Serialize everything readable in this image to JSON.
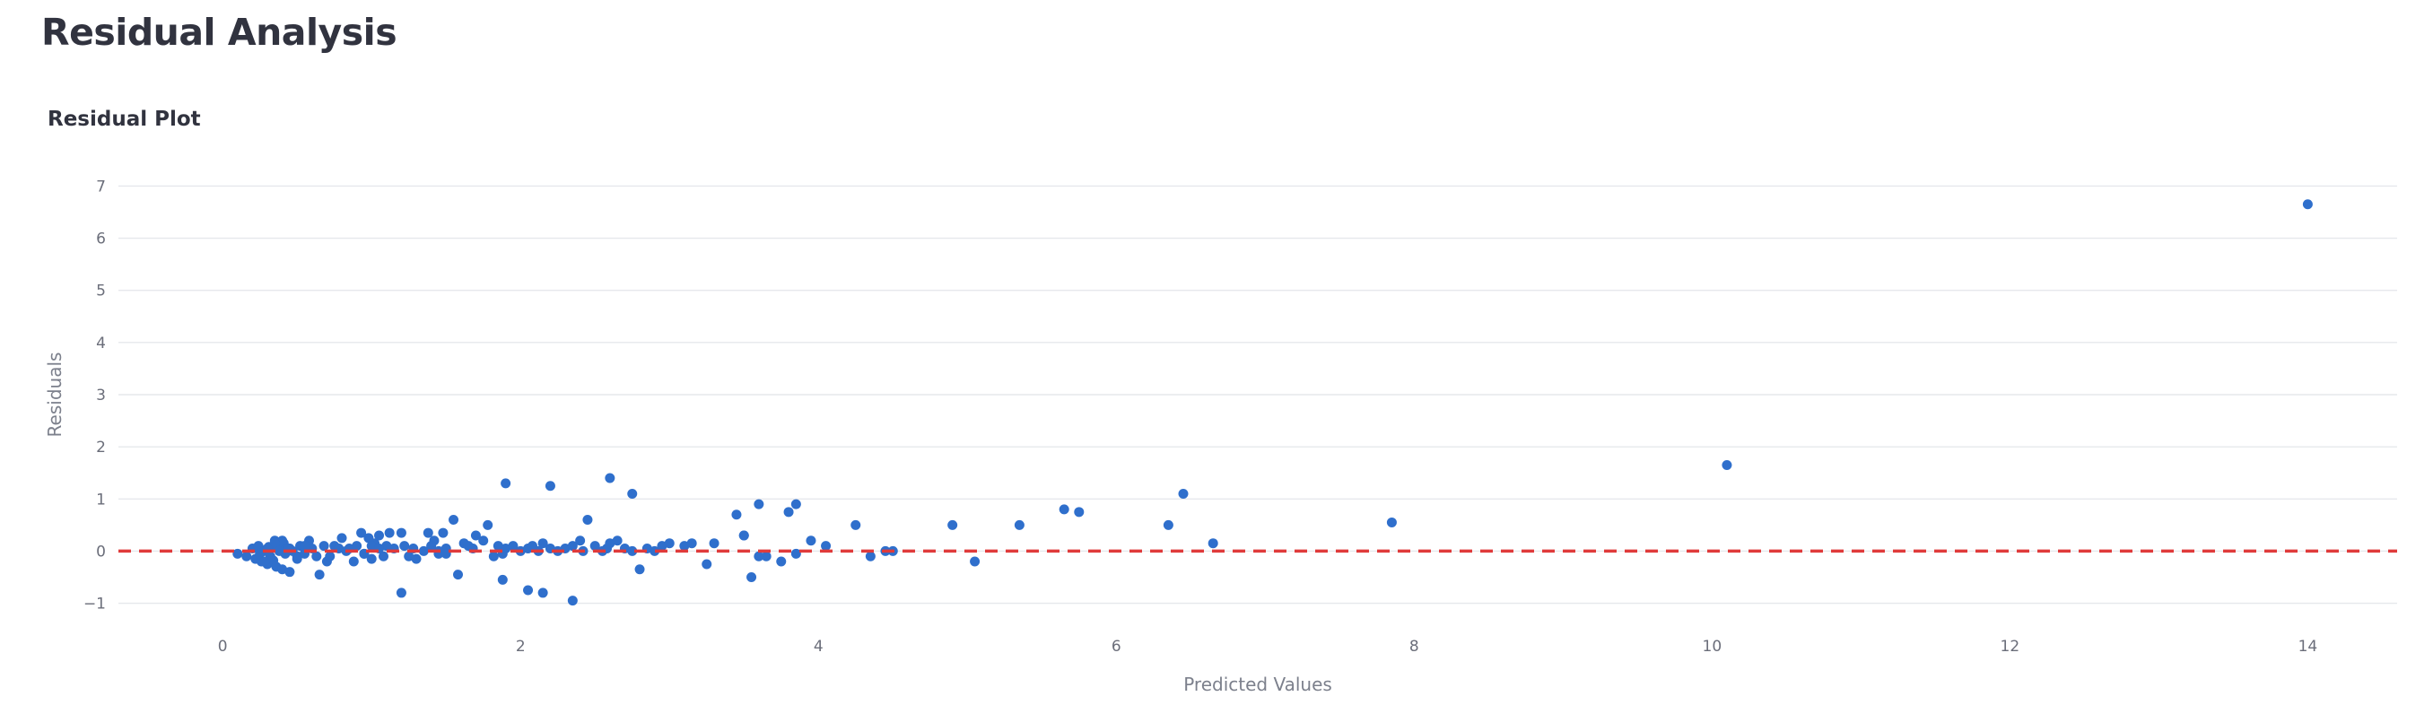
{
  "page": {
    "title": "Residual Analysis"
  },
  "chart_data": {
    "type": "scatter",
    "title": "Residual Plot",
    "xlabel": "Predicted Values",
    "ylabel": "Residuals",
    "xlim": [
      -0.7,
      14.6
    ],
    "ylim": [
      -1.3,
      7.3
    ],
    "x_ticks": [
      0,
      2,
      4,
      6,
      8,
      10,
      12,
      14
    ],
    "y_ticks": [
      -1,
      0,
      1,
      2,
      3,
      4,
      5,
      6,
      7
    ],
    "grid": true,
    "legend": "none",
    "colors": {
      "points": "#2f6fcc",
      "reference_line": "#e03b3b",
      "grid": "#e6e8ec"
    },
    "reference_line": {
      "y": 0,
      "style": "dashed"
    },
    "series": [
      {
        "x": [
          0.1,
          0.16,
          0.2,
          0.22,
          0.24,
          0.26,
          0.28,
          0.3,
          0.31,
          0.32,
          0.34,
          0.35,
          0.36,
          0.38,
          0.4,
          0.41,
          0.42,
          0.44,
          0.45,
          0.47,
          0.5,
          0.52,
          0.55,
          0.58,
          0.6,
          0.63,
          0.65,
          0.68,
          0.7,
          0.72,
          0.75,
          0.78,
          0.8,
          0.83,
          0.85,
          0.88,
          0.9,
          0.93,
          0.95,
          0.98,
          1.0,
          1.02,
          1.05,
          1.08,
          1.1,
          1.12,
          1.15,
          1.2,
          1.22,
          1.25,
          1.28,
          1.3,
          1.35,
          1.38,
          1.42,
          1.45,
          1.48,
          1.5,
          1.55,
          1.58,
          1.62,
          1.65,
          1.68,
          1.7,
          1.75,
          1.78,
          1.82,
          1.85,
          1.88,
          1.9,
          1.95,
          2.0,
          2.05,
          2.08,
          2.12,
          2.15,
          2.2,
          2.25,
          2.3,
          2.35,
          2.4,
          2.45,
          2.5,
          2.55,
          2.6,
          2.65,
          2.7,
          2.75,
          2.8,
          2.85,
          2.9,
          2.95,
          3.0,
          3.1,
          3.15,
          3.25,
          3.3,
          3.45,
          3.5,
          3.55,
          3.6,
          3.65,
          3.75,
          3.8,
          3.85,
          3.95,
          4.05,
          4.25,
          4.35,
          4.45,
          4.5,
          4.9,
          5.05,
          5.35,
          5.65,
          5.75,
          6.35,
          6.45,
          6.65,
          7.85,
          10.1,
          14.0,
          1.2,
          2.35,
          2.15,
          2.05,
          1.88,
          1.9,
          2.2,
          2.6,
          2.75,
          3.6,
          3.85,
          3.5,
          0.4,
          0.35,
          0.25,
          0.3,
          0.55,
          0.5,
          0.45,
          0.32,
          0.28,
          0.38,
          1.0,
          1.05,
          0.95,
          1.4,
          1.45,
          1.5,
          2.42,
          2.58
        ],
        "y": [
          -0.05,
          -0.1,
          0.05,
          -0.15,
          0.1,
          -0.2,
          0.0,
          -0.25,
          0.08,
          0.05,
          -0.18,
          0.2,
          -0.3,
          0.1,
          -0.35,
          0.15,
          -0.05,
          0.05,
          -0.4,
          0.0,
          -0.1,
          0.1,
          -0.05,
          0.2,
          0.05,
          -0.1,
          -0.45,
          0.1,
          -0.2,
          -0.1,
          0.1,
          0.05,
          0.25,
          0.0,
          0.05,
          -0.2,
          0.1,
          0.35,
          -0.05,
          0.25,
          -0.15,
          0.15,
          0.3,
          -0.1,
          0.1,
          0.35,
          0.05,
          0.35,
          0.1,
          -0.1,
          0.05,
          -0.15,
          0.0,
          0.35,
          0.2,
          -0.05,
          0.35,
          0.05,
          0.6,
          -0.45,
          0.15,
          0.1,
          0.05,
          0.3,
          0.2,
          0.5,
          -0.1,
          0.1,
          -0.05,
          0.05,
          0.1,
          0.0,
          0.05,
          0.1,
          0.0,
          0.15,
          0.05,
          0.0,
          0.05,
          0.1,
          0.2,
          0.6,
          0.1,
          0.0,
          0.15,
          0.2,
          0.05,
          0.0,
          -0.35,
          0.05,
          0.0,
          0.1,
          0.15,
          0.1,
          0.15,
          -0.25,
          0.15,
          0.7,
          0.3,
          -0.5,
          0.9,
          -0.1,
          -0.2,
          0.75,
          0.9,
          0.2,
          0.1,
          0.5,
          -0.1,
          0.0,
          0.0,
          0.5,
          -0.2,
          0.5,
          0.8,
          0.75,
          0.5,
          1.1,
          0.15,
          0.55,
          1.65,
          6.65,
          -0.8,
          -0.95,
          -0.8,
          -0.75,
          -0.55,
          1.3,
          1.25,
          1.4,
          1.1,
          -0.1,
          -0.05,
          0.3,
          0.2,
          0.15,
          -0.05,
          0.05,
          0.1,
          -0.15,
          0.05,
          -0.1,
          -0.2,
          0.0,
          0.1,
          0.05,
          -0.05,
          0.1,
          0.0,
          -0.05,
          0.0,
          0.05
        ]
      }
    ]
  }
}
